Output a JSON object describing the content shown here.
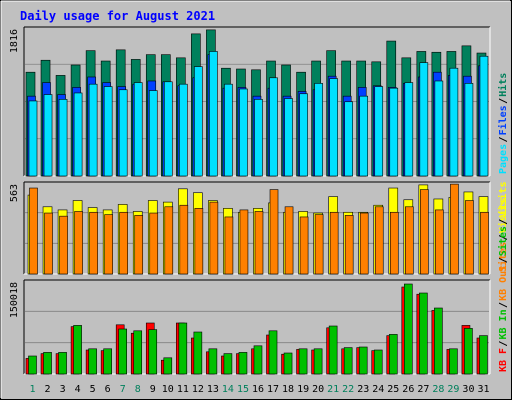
{
  "title": "Daily usage for August 2021",
  "colors": {
    "hits": "#00805c",
    "files": "#0040ff",
    "pages": "#00e0ff",
    "visits": "#ffff00",
    "sites": "#ff8000",
    "kb_in": "#00c000",
    "kb_out": "#ff0000",
    "panel": "#c0c0c0",
    "title_text": "#0000ff",
    "weekend_label": "#00805c",
    "weekday_label": "#000000"
  },
  "chart_data": [
    {
      "type": "bar",
      "name": "hits-files-pages",
      "max_label": "1816",
      "ylim": [
        0,
        1816
      ],
      "legend": [
        "Pages",
        "/",
        "Files",
        "/",
        "Hits"
      ],
      "legend_colors": [
        "#00e0ff",
        "#000000",
        "#0040ff",
        "#000000",
        "#00805c"
      ],
      "series": [
        {
          "name": "Hits",
          "color": "#00805c",
          "values": [
            1300,
            1450,
            1260,
            1390,
            1570,
            1440,
            1580,
            1460,
            1520,
            1520,
            1480,
            1780,
            1830,
            1350,
            1340,
            1330,
            1440,
            1390,
            1300,
            1440,
            1570,
            1440,
            1440,
            1430,
            1690,
            1480,
            1560,
            1550,
            1560,
            1630,
            1540
          ]
        },
        {
          "name": "Files",
          "color": "#0040ff",
          "values": [
            1000,
            1170,
            1020,
            1110,
            1240,
            1170,
            1120,
            1150,
            1190,
            1180,
            1130,
            1230,
            1520,
            1100,
            1110,
            1000,
            1100,
            1000,
            1060,
            1080,
            1250,
            1000,
            1110,
            1130,
            1110,
            1160,
            1240,
            1300,
            1260,
            1250,
            1380
          ]
        },
        {
          "name": "Pages",
          "color": "#00e0ff",
          "values": [
            940,
            1020,
            960,
            1040,
            1150,
            1120,
            1080,
            1170,
            1070,
            1180,
            1150,
            1370,
            1560,
            1150,
            1090,
            960,
            1230,
            970,
            1030,
            1160,
            1220,
            930,
            1000,
            1120,
            1100,
            1170,
            1420,
            1190,
            1350,
            1160,
            1500
          ]
        }
      ]
    },
    {
      "type": "bar",
      "name": "visits-sites",
      "max_label": "563",
      "ylim": [
        0,
        563
      ],
      "legend": [
        "Sites",
        "/",
        "Visits"
      ],
      "legend_colors": [
        "#ff8000",
        "#000000",
        "#ffff00"
      ],
      "series": [
        {
          "name": "Visits",
          "color": "#ffff00",
          "values": [
            505,
            430,
            410,
            470,
            425,
            410,
            445,
            400,
            470,
            460,
            545,
            520,
            470,
            420,
            395,
            420,
            455,
            395,
            400,
            390,
            495,
            395,
            395,
            440,
            550,
            475,
            570,
            480,
            490,
            525,
            495
          ]
        },
        {
          "name": "Sites",
          "color": "#ff8000",
          "values": [
            550,
            390,
            370,
            400,
            395,
            380,
            395,
            375,
            390,
            430,
            440,
            420,
            460,
            365,
            410,
            400,
            540,
            430,
            365,
            380,
            395,
            375,
            390,
            430,
            395,
            430,
            540,
            410,
            575,
            470,
            395
          ]
        }
      ]
    },
    {
      "type": "bar",
      "name": "kb-in-out",
      "max_label": "150018",
      "ylim": [
        0,
        150018
      ],
      "legend": [
        "KB F",
        "/",
        "KB In",
        "/",
        "KB Out",
        "/",
        "Sites",
        "/",
        "Visits"
      ],
      "legend_colors": [
        "#ff0000",
        "#000000",
        "#00c000",
        "#000000",
        "#ff8000",
        "#000000",
        "#00c000",
        "#000000",
        "#ffff00"
      ],
      "series": [
        {
          "name": "KB In",
          "color": "#00c000",
          "values": [
            30000,
            36000,
            36000,
            81000,
            42000,
            42000,
            75000,
            72000,
            74000,
            27000,
            85000,
            70000,
            42000,
            34000,
            36000,
            47000,
            72000,
            35000,
            42000,
            42000,
            80000,
            44000,
            45000,
            40000,
            66000,
            150018,
            135000,
            110000,
            42000,
            76000,
            64000
          ]
        },
        {
          "name": "KB Out",
          "color": "#ff0000",
          "values": [
            26000,
            34000,
            34000,
            79000,
            40000,
            39000,
            82000,
            68000,
            85000,
            23000,
            85000,
            60000,
            37000,
            30000,
            34000,
            42000,
            65000,
            33000,
            41000,
            40000,
            77000,
            42000,
            44000,
            39000,
            64000,
            145000,
            133000,
            106000,
            41000,
            81000,
            60000
          ]
        }
      ]
    }
  ],
  "day_labels": [
    "1",
    "2",
    "3",
    "4",
    "5",
    "6",
    "7",
    "8",
    "9",
    "10",
    "11",
    "12",
    "13",
    "14",
    "15",
    "16",
    "17",
    "18",
    "19",
    "20",
    "21",
    "22",
    "23",
    "24",
    "25",
    "26",
    "27",
    "28",
    "29",
    "30",
    "31"
  ],
  "weekend_days": [
    1,
    7,
    8,
    14,
    15,
    21,
    22,
    28,
    29
  ]
}
